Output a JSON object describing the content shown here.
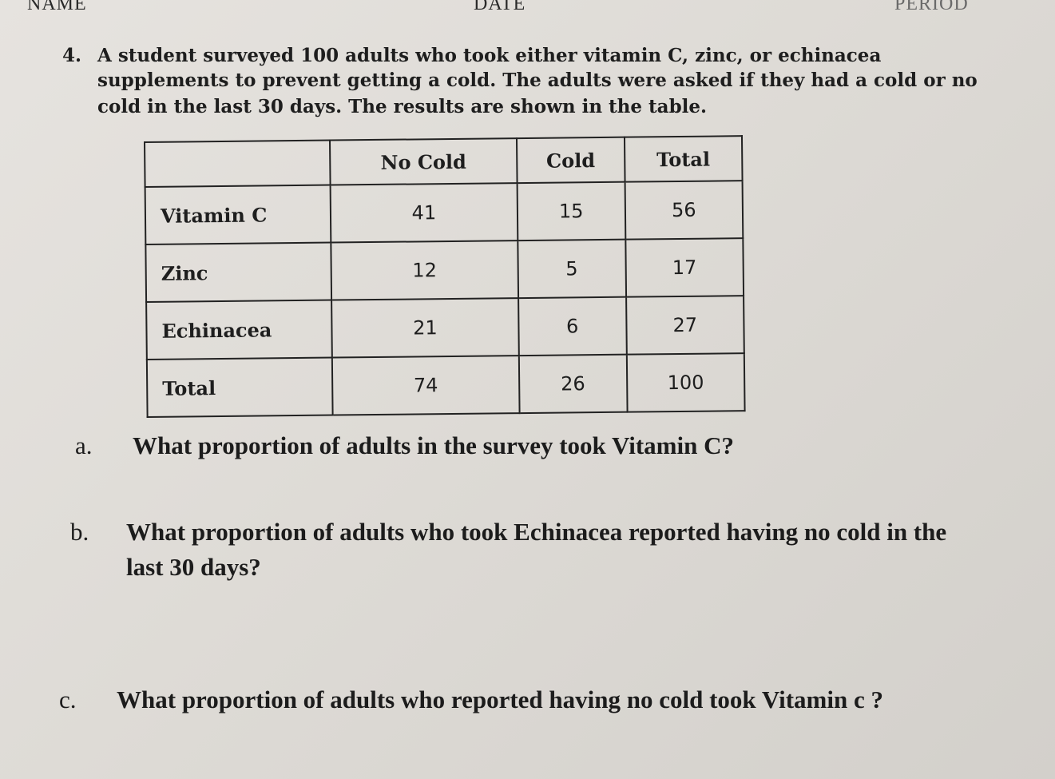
{
  "header": {
    "name_label": "NAME",
    "date_label": "DATE",
    "period_label": "PERIOD"
  },
  "problem": {
    "number": "4.",
    "prompt_lines": [
      "A student surveyed 100 adults who took either vitamin C, zinc, or echinacea",
      "supplements to prevent getting a cold. The adults were asked if they had a cold or no",
      "cold in the last 30 days. The results are shown in the table."
    ]
  },
  "table": {
    "headers": [
      "",
      "No Cold",
      "Cold",
      "Total"
    ],
    "rows": [
      {
        "label": "Vitamin C",
        "values": [
          "41",
          "15",
          "56"
        ]
      },
      {
        "label": "Zinc",
        "values": [
          "12",
          "5",
          "17"
        ]
      },
      {
        "label": "Echinacea",
        "values": [
          "21",
          "6",
          "27"
        ]
      },
      {
        "label": "Total",
        "values": [
          "74",
          "26",
          "100"
        ]
      }
    ]
  },
  "questions": {
    "a": {
      "letter": "a.",
      "text": "What proportion of adults in the survey took Vitamin C?"
    },
    "b": {
      "letter": "b.",
      "text_line1": "What proportion of adults who took Echinacea reported having no cold in the",
      "text_line2": "last 30 days?"
    },
    "c": {
      "letter": "c.",
      "text": "What proportion of adults who reported having no cold took Vitamin c ?"
    }
  }
}
